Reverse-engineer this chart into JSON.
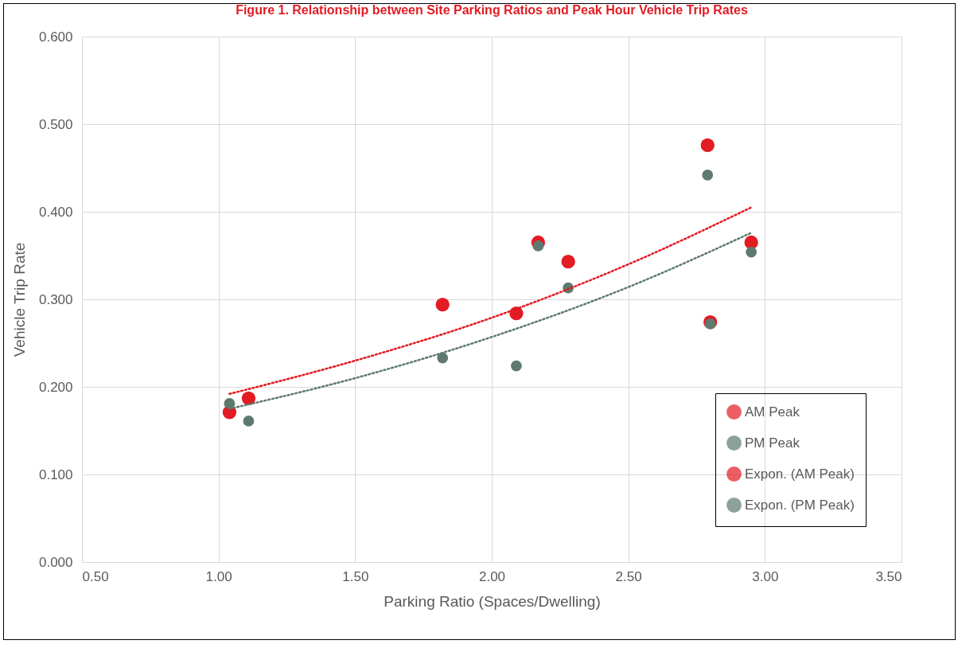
{
  "chart_data": {
    "type": "scatter",
    "title": "Figure 1.        Relationship between Site Parking Ratios and Peak Hour Vehicle Trip Rates",
    "xlabel": "Parking Ratio (Spaces/Dwelling)",
    "ylabel": "Vehicle Trip Rate",
    "x": [
      1.04,
      1.11,
      1.82,
      2.09,
      2.17,
      2.28,
      2.79,
      2.8,
      2.95
    ],
    "series": [
      {
        "name": "AM Peak",
        "color": "#e31b23",
        "marker": "circle",
        "values": [
          0.171,
          0.187,
          0.294,
          0.284,
          0.365,
          0.343,
          0.476,
          0.274,
          0.365
        ]
      },
      {
        "name": "PM Peak",
        "color": "#5e7a6e",
        "marker": "circle",
        "values": [
          0.181,
          0.161,
          0.233,
          0.224,
          0.361,
          0.313,
          0.442,
          0.272,
          0.354
        ]
      },
      {
        "name": "Expon. (AM Peak)",
        "type": "line",
        "color": "#e31b23",
        "line_style": "dotted",
        "x": [
          1.04,
          1.5,
          2.0,
          2.5,
          2.95
        ],
        "values": [
          0.192,
          0.23,
          0.279,
          0.34,
          0.405
        ]
      },
      {
        "name": "Expon. (PM Peak)",
        "type": "line",
        "color": "#5e7a6e",
        "line_style": "dotted",
        "x": [
          1.04,
          1.5,
          2.0,
          2.5,
          2.95
        ],
        "values": [
          0.175,
          0.21,
          0.257,
          0.314,
          0.376
        ]
      }
    ],
    "xlim": [
      0.5,
      3.5
    ],
    "xticks": [
      {
        "value": 0.5,
        "label": "0.50"
      },
      {
        "value": 1,
        "label": "1.00"
      },
      {
        "value": 1.5,
        "label": "1.50"
      },
      {
        "value": 2,
        "label": "2.00"
      },
      {
        "value": 2.5,
        "label": "2.50"
      },
      {
        "value": 3,
        "label": "3.00"
      },
      {
        "value": 3.5,
        "label": "3.50"
      }
    ],
    "ylim": [
      0,
      0.6
    ],
    "yticks": [
      {
        "value": 0,
        "label": "0.000"
      },
      {
        "value": 0.1,
        "label": "0.100"
      },
      {
        "value": 0.2,
        "label": "0.200"
      },
      {
        "value": 0.3,
        "label": "0.300"
      },
      {
        "value": 0.4,
        "label": "0.400"
      },
      {
        "value": 0.5,
        "label": "0.500"
      },
      {
        "value": 0.6,
        "label": "0.600"
      }
    ],
    "grid": true,
    "legend": "bottom right"
  }
}
